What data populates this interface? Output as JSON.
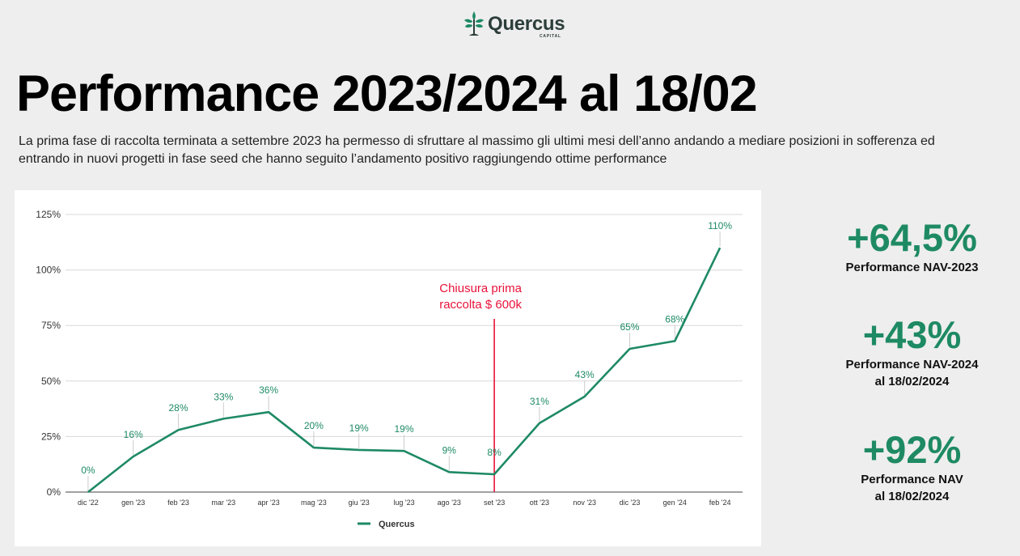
{
  "brand": {
    "name": "Quercus",
    "tagline": "CAPITAL",
    "color": "#1e8a64"
  },
  "page": {
    "title": "Performance 2023/2024 al 18/02",
    "subtitle": "La prima fase di raccolta terminata a settembre 2023 ha permesso di sfruttare al massimo gli ultimi mesi dell’anno andando a mediare posizioni in sofferenza ed entrando in nuovi progetti in fase seed che hanno seguito l’andamento positivo raggiungendo ottime performance"
  },
  "chart_data": {
    "type": "line",
    "categories": [
      "dic '22",
      "gen '23",
      "feb '23",
      "mar '23",
      "apr '23",
      "mag '23",
      "giu '23",
      "lug '23",
      "ago '23",
      "set '23",
      "ott '23",
      "nov '23",
      "dic '23",
      "gen '24",
      "feb '24"
    ],
    "series": [
      {
        "name": "Quercus",
        "color": "#1e8a64",
        "values": [
          0,
          16,
          28,
          33,
          36,
          20,
          19,
          18.5,
          9,
          8,
          31,
          43,
          64.5,
          68,
          110
        ],
        "labels": [
          "0%",
          "16%",
          "28%",
          "33%",
          "36%",
          "20%",
          "19%",
          "19%",
          "9%",
          "8%",
          "31%",
          "43%",
          "65%",
          "68%",
          "110%"
        ]
      }
    ],
    "yticks": [
      {
        "value": 0,
        "label": "0%"
      },
      {
        "value": 25,
        "label": "25%"
      },
      {
        "value": 50,
        "label": "50%"
      },
      {
        "value": 75,
        "label": "75%"
      },
      {
        "value": 100,
        "label": "100%"
      },
      {
        "value": 125,
        "label": "125%"
      }
    ],
    "ylim": [
      0,
      125
    ],
    "grid": true,
    "legend": "bottom",
    "annotation": {
      "category": "set '23",
      "lines": [
        "Chiusura prima",
        "raccolta $ 600k"
      ],
      "color": "#e8123a"
    }
  },
  "stats": [
    {
      "value": "+64,5%",
      "label": "Performance NAV-2023"
    },
    {
      "value": "+43%",
      "label": "Performance NAV-2024\nal 18/02/2024"
    },
    {
      "value": "+92%",
      "label": "Performance NAV\nal 18/02/2024"
    }
  ]
}
